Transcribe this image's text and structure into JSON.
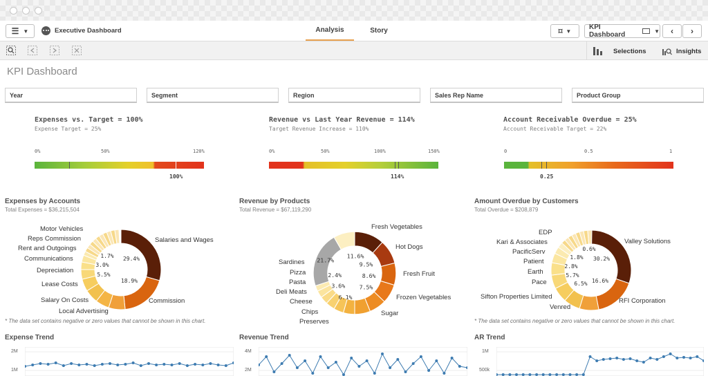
{
  "toolbar": {
    "app_name": "Executive Dashboard",
    "tabs": [
      {
        "label": "Analysis",
        "active": true
      },
      {
        "label": "Story",
        "active": false
      }
    ],
    "sheet_name": "KPI Dashboard",
    "selections_label": "Selections",
    "insights_label": "Insights"
  },
  "page_title": "KPI Dashboard",
  "filters": [
    "Year",
    "Segment",
    "Region",
    "Sales Rep Name",
    "Product Group"
  ],
  "kpis": [
    {
      "title": "Expenses vs. Target = 100%",
      "subtitle": "Expense Target = 25%",
      "ticks": [
        "0%",
        "50%",
        "120%"
      ],
      "value_label": "100%"
    },
    {
      "title": "Revenue vs Last Year Revenue = 114%",
      "subtitle": "Target Revenue Increase = 110%",
      "ticks": [
        "0%",
        "50%",
        "100%",
        "150%"
      ],
      "value_label": "114%"
    },
    {
      "title": "Account Receivable Overdue = 25%",
      "subtitle": "Account Receivable Target = 22%",
      "ticks": [
        "0",
        "0.5",
        "1"
      ],
      "value_label": "0.25"
    }
  ],
  "donuts": [
    {
      "title": "Expenses by Accounts",
      "subtitle": "Total Expenses = $36,215,504",
      "labels": [
        "Motor Vehicles",
        "Reps Commission",
        "Rent and Outgoings",
        "Communications",
        "Depreciation",
        "Lease Costs",
        "Salary On Costs",
        "Local Advertising",
        "Salaries and Wages",
        "Commission"
      ],
      "pcts": [
        "1.7%",
        "3.0%",
        "5.5%",
        "29.4%",
        "18.9%"
      ],
      "note": "* The data set contains negative or zero values that cannot be shown in this chart."
    },
    {
      "title": "Revenue by Products",
      "subtitle": "Total Revenue = $67,119,290",
      "labels": [
        "Fresh Vegetables",
        "Hot Dogs",
        "Fresh Fruit",
        "Frozen Vegetables",
        "Sugar",
        "Preserves",
        "Chips",
        "Cheese",
        "Deli Meats",
        "Pasta",
        "Pizza",
        "Sardines"
      ],
      "pcts": [
        "21.7%",
        "11.6%",
        "9.5%",
        "8.6%",
        "7.5%",
        "6.1%",
        "3.6%",
        "2.4%"
      ]
    },
    {
      "title": "Amount Overdue by Customers",
      "subtitle": "Total Overdue = $208,879",
      "labels": [
        "EDP",
        "Kari & Associates",
        "PacificServ",
        "Patient",
        "Earth",
        "Pace",
        "Sifton Properties Limited",
        "Venred",
        "Valley  Solutions",
        "RFI Corporation"
      ],
      "pcts": [
        "0.6%",
        "1.8%",
        "2.8%",
        "5.7%",
        "6.5%",
        "30.2%",
        "16.6%"
      ],
      "note": "* The data set contains negative or zero values that cannot be shown in this chart."
    }
  ],
  "trends": [
    {
      "title": "Expense Trend",
      "ticks": [
        "2M",
        "1M"
      ]
    },
    {
      "title": "Revenue Trend",
      "ticks": [
        "4M",
        "2M"
      ]
    },
    {
      "title": "AR Trend",
      "ticks": [
        "1M",
        "500k"
      ]
    }
  ],
  "colors": {
    "accent": "#e8a04f",
    "donut_dark": "#5a1f08",
    "donut_orange": "#d9650f",
    "donut_yellow": "#f2c14e",
    "gauge_green": "#5ab43c",
    "gauge_yellow": "#e4d02a",
    "gauge_red": "#e2331c",
    "trend_line": "#3e7cb1"
  }
}
